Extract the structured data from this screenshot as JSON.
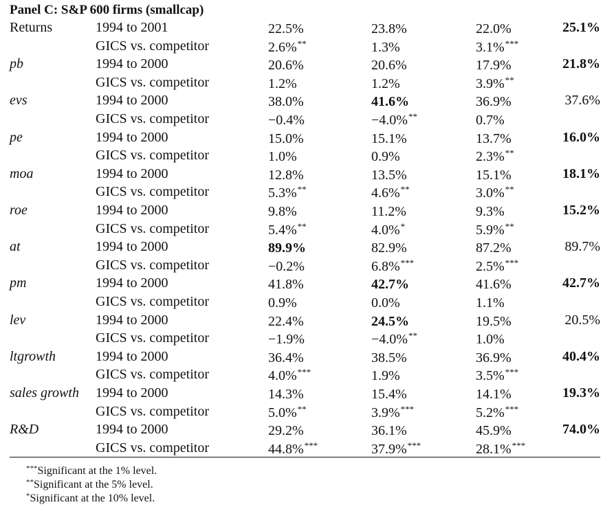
{
  "title": "Panel C: S&P 600 firms (smallcap)",
  "rows": [
    {
      "var": "Returns",
      "italic": false,
      "period": "1994 to 2001",
      "v1": "22.5%",
      "s1": "",
      "b1": false,
      "v2": "23.8%",
      "s2": "",
      "b2": false,
      "v3": "22.0%",
      "s3": "",
      "b3": false,
      "v4": "25.1%",
      "b4": true
    },
    {
      "var": "",
      "italic": false,
      "period": "GICS vs. competitor",
      "v1": "2.6%",
      "s1": "**",
      "b1": false,
      "v2": "1.3%",
      "s2": "",
      "b2": false,
      "v3": "3.1%",
      "s3": "***",
      "b3": false,
      "v4": "",
      "b4": false
    },
    {
      "var": "pb",
      "italic": true,
      "period": "1994 to 2000",
      "v1": "20.6%",
      "s1": "",
      "b1": false,
      "v2": "20.6%",
      "s2": "",
      "b2": false,
      "v3": "17.9%",
      "s3": "",
      "b3": false,
      "v4": "21.8%",
      "b4": true
    },
    {
      "var": "",
      "italic": false,
      "period": "GICS vs. competitor",
      "v1": "1.2%",
      "s1": "",
      "b1": false,
      "v2": "1.2%",
      "s2": "",
      "b2": false,
      "v3": "3.9%",
      "s3": "**",
      "b3": false,
      "v4": "",
      "b4": false
    },
    {
      "var": "evs",
      "italic": true,
      "period": "1994 to 2000",
      "v1": "38.0%",
      "s1": "",
      "b1": false,
      "v2": "41.6%",
      "s2": "",
      "b2": true,
      "v3": "36.9%",
      "s3": "",
      "b3": false,
      "v4": "37.6%",
      "b4": false
    },
    {
      "var": "",
      "italic": false,
      "period": "GICS vs. competitor",
      "v1": "−0.4%",
      "s1": "",
      "b1": false,
      "v2": "−4.0%",
      "s2": "**",
      "b2": false,
      "v3": "0.7%",
      "s3": "",
      "b3": false,
      "v4": "",
      "b4": false
    },
    {
      "var": "pe",
      "italic": true,
      "period": "1994 to 2000",
      "v1": "15.0%",
      "s1": "",
      "b1": false,
      "v2": "15.1%",
      "s2": "",
      "b2": false,
      "v3": "13.7%",
      "s3": "",
      "b3": false,
      "v4": "16.0%",
      "b4": true
    },
    {
      "var": "",
      "italic": false,
      "period": "GICS vs. competitor",
      "v1": "1.0%",
      "s1": "",
      "b1": false,
      "v2": "0.9%",
      "s2": "",
      "b2": false,
      "v3": "2.3%",
      "s3": "**",
      "b3": false,
      "v4": "",
      "b4": false
    },
    {
      "var": "moa",
      "italic": true,
      "period": "1994 to 2000",
      "v1": "12.8%",
      "s1": "",
      "b1": false,
      "v2": "13.5%",
      "s2": "",
      "b2": false,
      "v3": "15.1%",
      "s3": "",
      "b3": false,
      "v4": "18.1%",
      "b4": true
    },
    {
      "var": "",
      "italic": false,
      "period": "GICS vs. competitor",
      "v1": "5.3%",
      "s1": "**",
      "b1": false,
      "v2": "4.6%",
      "s2": "**",
      "b2": false,
      "v3": "3.0%",
      "s3": "**",
      "b3": false,
      "v4": "",
      "b4": false
    },
    {
      "var": "roe",
      "italic": true,
      "period": "1994 to 2000",
      "v1": "9.8%",
      "s1": "",
      "b1": false,
      "v2": "11.2%",
      "s2": "",
      "b2": false,
      "v3": "9.3%",
      "s3": "",
      "b3": false,
      "v4": "15.2%",
      "b4": true
    },
    {
      "var": "",
      "italic": false,
      "period": "GICS vs. competitor",
      "v1": "5.4%",
      "s1": "**",
      "b1": false,
      "v2": "4.0%",
      "s2": "*",
      "b2": false,
      "v3": "5.9%",
      "s3": "**",
      "b3": false,
      "v4": "",
      "b4": false
    },
    {
      "var": "at",
      "italic": true,
      "period": "1994 to 2000",
      "v1": "89.9%",
      "s1": "",
      "b1": true,
      "v2": "82.9%",
      "s2": "",
      "b2": false,
      "v3": "87.2%",
      "s3": "",
      "b3": false,
      "v4": "89.7%",
      "b4": false
    },
    {
      "var": "",
      "italic": false,
      "period": "GICS vs. competitor",
      "v1": "−0.2%",
      "s1": "",
      "b1": false,
      "v2": "6.8%",
      "s2": "***",
      "b2": false,
      "v3": "2.5%",
      "s3": "***",
      "b3": false,
      "v4": "",
      "b4": false
    },
    {
      "var": "pm",
      "italic": true,
      "period": "1994 to 2000",
      "v1": "41.8%",
      "s1": "",
      "b1": false,
      "v2": "42.7%",
      "s2": "",
      "b2": true,
      "v3": "41.6%",
      "s3": "",
      "b3": false,
      "v4": "42.7%",
      "b4": true
    },
    {
      "var": "",
      "italic": false,
      "period": "GICS vs. competitor",
      "v1": "0.9%",
      "s1": "",
      "b1": false,
      "v2": "0.0%",
      "s2": "",
      "b2": false,
      "v3": "1.1%",
      "s3": "",
      "b3": false,
      "v4": "",
      "b4": false
    },
    {
      "var": "lev",
      "italic": true,
      "period": "1994 to 2000",
      "v1": "22.4%",
      "s1": "",
      "b1": false,
      "v2": "24.5%",
      "s2": "",
      "b2": true,
      "v3": "19.5%",
      "s3": "",
      "b3": false,
      "v4": "20.5%",
      "b4": false
    },
    {
      "var": "",
      "italic": false,
      "period": "GICS vs. competitor",
      "v1": "−1.9%",
      "s1": "",
      "b1": false,
      "v2": "−4.0%",
      "s2": "**",
      "b2": false,
      "v3": "1.0%",
      "s3": "",
      "b3": false,
      "v4": "",
      "b4": false
    },
    {
      "var": "ltgrowth",
      "italic": true,
      "period": "1994 to 2000",
      "v1": "36.4%",
      "s1": "",
      "b1": false,
      "v2": "38.5%",
      "s2": "",
      "b2": false,
      "v3": "36.9%",
      "s3": "",
      "b3": false,
      "v4": "40.4%",
      "b4": true
    },
    {
      "var": "",
      "italic": false,
      "period": "GICS vs. competitor",
      "v1": "4.0%",
      "s1": "***",
      "b1": false,
      "v2": "1.9%",
      "s2": "",
      "b2": false,
      "v3": "3.5%",
      "s3": "***",
      "b3": false,
      "v4": "",
      "b4": false
    },
    {
      "var": "sales growth",
      "italic": true,
      "period": "1994 to 2000",
      "v1": "14.3%",
      "s1": "",
      "b1": false,
      "v2": "15.4%",
      "s2": "",
      "b2": false,
      "v3": "14.1%",
      "s3": "",
      "b3": false,
      "v4": "19.3%",
      "b4": true
    },
    {
      "var": "",
      "italic": false,
      "period": "GICS vs. competitor",
      "v1": "5.0%",
      "s1": "**",
      "b1": false,
      "v2": "3.9%",
      "s2": "***",
      "b2": false,
      "v3": "5.2%",
      "s3": "***",
      "b3": false,
      "v4": "",
      "b4": false
    },
    {
      "var": "R&D",
      "italic": true,
      "period": "1994 to 2000",
      "v1": "29.2%",
      "s1": "",
      "b1": false,
      "v2": "36.1%",
      "s2": "",
      "b2": false,
      "v3": "45.9%",
      "s3": "",
      "b3": false,
      "v4": "74.0%",
      "b4": true
    },
    {
      "var": "",
      "italic": false,
      "period": "GICS vs. competitor",
      "v1": "44.8%",
      "s1": "***",
      "b1": false,
      "v2": "37.9%",
      "s2": "***",
      "b2": false,
      "v3": "28.1%",
      "s3": "***",
      "b3": false,
      "v4": "",
      "b4": false
    }
  ],
  "notes": [
    {
      "stars": "***",
      "text": "Significant at the 1% level."
    },
    {
      "stars": "**",
      "text": "Significant at the 5% level."
    },
    {
      "stars": "*",
      "text": "Significant at the 10% level."
    }
  ]
}
